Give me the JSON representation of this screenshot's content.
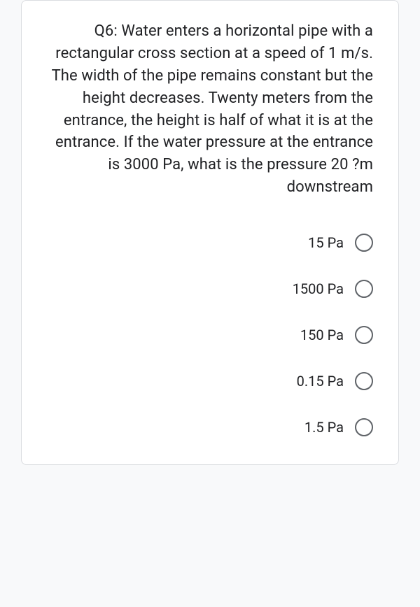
{
  "question": {
    "text": "Q6: Water enters a horizontal pipe with a rectangular cross section at a speed of 1 m/s. The width of the pipe remains constant but the height decreases. Twenty meters from the entrance, the height is half of what it is at the entrance. If the water pressure at the entrance is 3000 Pa, what is the pressure 20 ?m downstream"
  },
  "options": [
    {
      "label": "15 Pa"
    },
    {
      "label": "1500 Pa"
    },
    {
      "label": "150 Pa"
    },
    {
      "label": "0.15 Pa"
    },
    {
      "label": "1.5 Pa"
    }
  ],
  "styles": {
    "card_background": "#ffffff",
    "card_border_color": "#dadce0",
    "text_color": "#202124",
    "radio_border_color": "#5f6368",
    "question_fontsize": 22,
    "option_fontsize": 20
  }
}
